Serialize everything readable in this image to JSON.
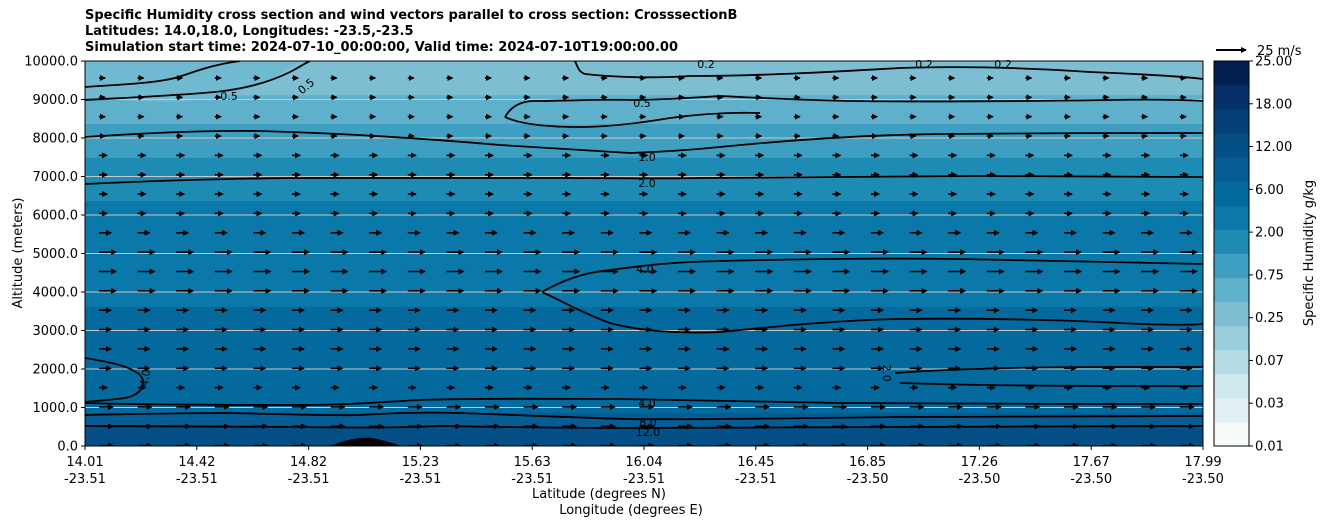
{
  "chart_data": {
    "type": "contourf",
    "title_lines": [
      "Specific Humidity cross section and wind vectors parallel to cross section: CrosssectionB",
      "Latitudes: 14.0,18.0, Longitudes: -23.5,-23.5",
      "Simulation start time: 2024-07-10_00:00:00, Valid time: 2024-07-10T19:00:00.00"
    ],
    "ylabel": "Altitude (meters)",
    "xlabel_lines": [
      "Latitude (degrees N)",
      "Longitude (degrees E)"
    ],
    "ylim": [
      0,
      10000
    ],
    "y_ticks": [
      "0.0",
      "1000.0",
      "2000.0",
      "3000.0",
      "4000.0",
      "5000.0",
      "6000.0",
      "7000.0",
      "8000.0",
      "9000.0",
      "10000.0"
    ],
    "x_ticks": [
      {
        "lat": "14.01",
        "lon": "-23.51"
      },
      {
        "lat": "14.42",
        "lon": "-23.51"
      },
      {
        "lat": "14.82",
        "lon": "-23.51"
      },
      {
        "lat": "15.23",
        "lon": "-23.51"
      },
      {
        "lat": "15.63",
        "lon": "-23.51"
      },
      {
        "lat": "16.04",
        "lon": "-23.51"
      },
      {
        "lat": "16.45",
        "lon": "-23.51"
      },
      {
        "lat": "16.85",
        "lon": "-23.50"
      },
      {
        "lat": "17.26",
        "lon": "-23.50"
      },
      {
        "lat": "17.67",
        "lon": "-23.50"
      },
      {
        "lat": "17.99",
        "lon": "-23.50"
      }
    ],
    "colorbar": {
      "label": "Specific Humidity g/kg",
      "tick_labels": [
        "0.01",
        "0.03",
        "0.07",
        "0.25",
        "0.75",
        "2.00",
        "6.00",
        "12.00",
        "18.00",
        "25.00"
      ]
    },
    "wind_key": {
      "label": "25 m/s",
      "value": 25
    },
    "contour_labels": [
      "0.2",
      "0.2",
      "0.2",
      "0.5",
      "0.5",
      "0.5",
      "1.0",
      "2.0",
      "4.0",
      "4.0",
      "4.0",
      "8.0",
      "12.0",
      "2.0"
    ],
    "background_levels": [
      {
        "z": 0,
        "value": 14.0
      },
      {
        "z": 500,
        "value": 11.0
      },
      {
        "z": 1000,
        "value": 5.0
      },
      {
        "z": 3000,
        "value": 5.0
      },
      {
        "z": 4000,
        "value": 4.2
      },
      {
        "z": 5000,
        "value": 3.0
      },
      {
        "z": 6500,
        "value": 2.2
      },
      {
        "z": 7000,
        "value": 1.8
      },
      {
        "z": 8000,
        "value": 0.9
      },
      {
        "z": 9000,
        "value": 0.45
      },
      {
        "z": 10000,
        "value": 0.3
      }
    ]
  },
  "colors": {
    "levels": [
      "#f7fbfc",
      "#e3f1f5",
      "#cfe7ee",
      "#b5dbe6",
      "#99cedc",
      "#7dbed3",
      "#5fb0cb",
      "#3f9fc1",
      "#1e8bb5",
      "#0a78a8",
      "#046a9e",
      "#055d94",
      "#054f87",
      "#053f78",
      "#052f66",
      "#041e52"
    ],
    "contour": "#000000",
    "grid": "#c8c8c8"
  }
}
